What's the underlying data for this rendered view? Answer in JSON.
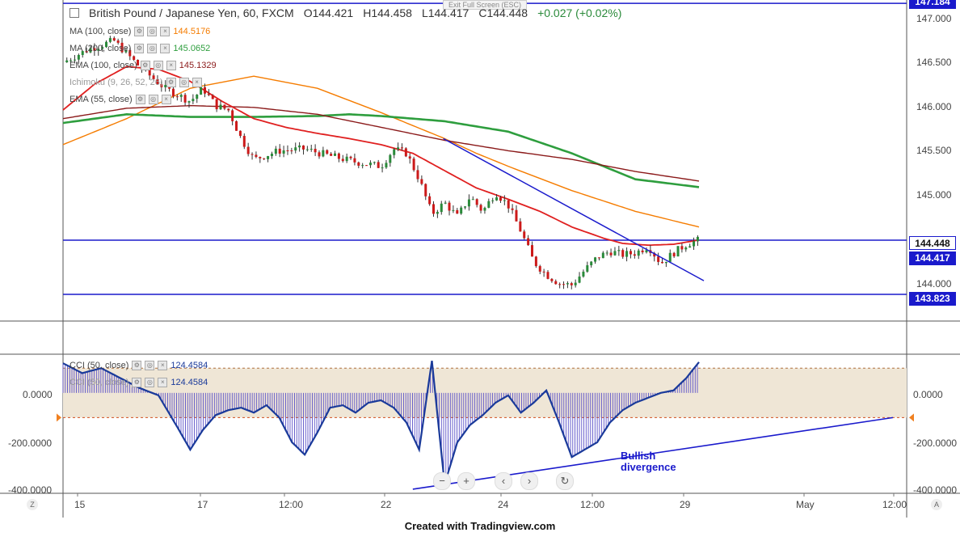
{
  "header": {
    "symbol": "British Pound / Japanese Yen, 60, FXCM",
    "open": "O144.421",
    "high": "H144.458",
    "low": "L144.417",
    "close": "C144.448",
    "change": "+0.027 (+0.02%)",
    "exit_fullscreen": "Exit Full Screen (ESC)"
  },
  "indicators": [
    {
      "name": "MA (100, close)",
      "value": "144.5176",
      "color": "#f57c00"
    },
    {
      "name": "MA (200, close)",
      "value": "145.0652",
      "color": "#2e9e3e"
    },
    {
      "name": "EMA (100, close)",
      "value": "145.1329",
      "color": "#8b1a1a"
    },
    {
      "name": "Ichimoku (9, 26, 52, 26)",
      "value": "",
      "color": "#999999"
    },
    {
      "name": "EMA (55, close)",
      "value": "",
      "color": "#e02020"
    }
  ],
  "cci_legend": [
    {
      "name": "CCI (50, close)",
      "value": "124.4584"
    },
    {
      "name": "CCI (50, close)",
      "value": "124.4584"
    }
  ],
  "price_labels": {
    "top": "147.184",
    "last": "144.448",
    "level": "144.417",
    "support": "143.823"
  },
  "y_ticks": [
    "147.000",
    "146.500",
    "146.000",
    "145.500",
    "145.000",
    "144.000"
  ],
  "cci_ticks": [
    "0.0000",
    "-200.0000",
    "-400.0000"
  ],
  "cci_left_ticks": [
    "0.0000",
    "-200.0000",
    "-400.0000"
  ],
  "x_ticks": [
    "15",
    "17",
    "12:00",
    "22",
    "24",
    "12:00",
    "29",
    "May",
    "12:00"
  ],
  "annotation": [
    "Bullish",
    "divergence"
  ],
  "footer": "Created with Tradingview.com",
  "nav": {
    "zoom_out": "−",
    "zoom_in": "+",
    "back": "‹",
    "forward": "›",
    "reset": "↻"
  },
  "corner_left": "Z",
  "corner_right": "A",
  "colors": {
    "line_blue": "#1a1acc",
    "candle_up": "#2a8a3a",
    "candle_down": "#cc1a1a",
    "cci": "#1a3a9a",
    "band": "#efe6d6"
  },
  "chart_data": {
    "type": "line",
    "ylim": [
      143.72,
      147.2
    ],
    "x_range": [
      0,
      100
    ],
    "grid": false,
    "series": [
      {
        "name": "EMA (55, close)",
        "color": "#e02020",
        "x": [
          0,
          5,
          10,
          15,
          20,
          25,
          30,
          35,
          40,
          45,
          50,
          55,
          60,
          65,
          70,
          75,
          80,
          85,
          88,
          92,
          96,
          100
        ],
        "y": [
          145.95,
          146.25,
          146.45,
          146.42,
          146.28,
          146.05,
          145.85,
          145.75,
          145.68,
          145.62,
          145.55,
          145.45,
          145.25,
          145.05,
          144.92,
          144.78,
          144.6,
          144.47,
          144.41,
          144.39,
          144.4,
          144.45
        ]
      },
      {
        "name": "MA (100, close)",
        "color": "#f57c00",
        "x": [
          0,
          10,
          20,
          30,
          40,
          50,
          60,
          65,
          70,
          80,
          90,
          100
        ],
        "y": [
          145.55,
          145.85,
          146.2,
          146.34,
          146.2,
          145.92,
          145.62,
          145.45,
          145.3,
          145.02,
          144.78,
          144.6
        ]
      },
      {
        "name": "MA (200, close)",
        "color": "#2e9e3e",
        "x": [
          0,
          10,
          20,
          30,
          40,
          45,
          50,
          60,
          70,
          80,
          90,
          100
        ],
        "y": [
          145.8,
          145.9,
          145.87,
          145.87,
          145.88,
          145.9,
          145.88,
          145.82,
          145.7,
          145.45,
          145.15,
          145.06
        ]
      },
      {
        "name": "EMA (100, close)",
        "color": "#8b1a1a",
        "x": [
          0,
          10,
          20,
          30,
          40,
          50,
          60,
          70,
          80,
          90,
          100
        ],
        "y": [
          145.85,
          145.97,
          146.0,
          145.98,
          145.9,
          145.75,
          145.6,
          145.48,
          145.38,
          145.24,
          145.13
        ]
      },
      {
        "name": "Close",
        "color": "#222222",
        "x": [
          0,
          4,
          8,
          12,
          16,
          20,
          22,
          24,
          26,
          28,
          30,
          34,
          38,
          42,
          46,
          50,
          52,
          54,
          56,
          58,
          60,
          62,
          64,
          66,
          68,
          70,
          72,
          74,
          76,
          78,
          80,
          82,
          84,
          86,
          88,
          90,
          92,
          94,
          96,
          98,
          100
        ],
        "y": [
          146.5,
          146.65,
          146.75,
          146.45,
          146.2,
          146.05,
          146.2,
          146.0,
          145.95,
          145.62,
          145.38,
          145.48,
          145.5,
          145.42,
          145.35,
          145.3,
          145.5,
          145.45,
          145.15,
          144.75,
          144.88,
          144.72,
          144.95,
          144.78,
          145.0,
          144.85,
          144.55,
          144.2,
          144.05,
          143.95,
          143.93,
          144.1,
          144.25,
          144.32,
          144.28,
          144.3,
          144.38,
          144.18,
          144.3,
          144.4,
          144.45
        ]
      }
    ],
    "cci": {
      "name": "CCI (50, close)",
      "ylim": [
        -400,
        150
      ],
      "x": [
        0,
        3,
        6,
        9,
        12,
        15,
        18,
        20,
        22,
        24,
        26,
        28,
        30,
        32,
        34,
        36,
        38,
        40,
        42,
        44,
        46,
        48,
        50,
        52,
        54,
        56,
        58,
        60,
        62,
        64,
        66,
        68,
        70,
        72,
        74,
        76,
        78,
        80,
        82,
        84,
        86,
        88,
        90,
        92,
        94,
        96,
        98,
        100
      ],
      "y": [
        120,
        80,
        100,
        60,
        20,
        -10,
        -140,
        -230,
        -150,
        -90,
        -70,
        -60,
        -80,
        -50,
        -100,
        -200,
        -250,
        -160,
        -60,
        -50,
        -80,
        -40,
        -30,
        -60,
        -120,
        -230,
        130,
        -370,
        -200,
        -130,
        -90,
        -40,
        -10,
        -80,
        -40,
        10,
        -120,
        -260,
        -230,
        -200,
        -120,
        -70,
        -40,
        -20,
        0,
        10,
        60,
        124.46
      ]
    }
  }
}
